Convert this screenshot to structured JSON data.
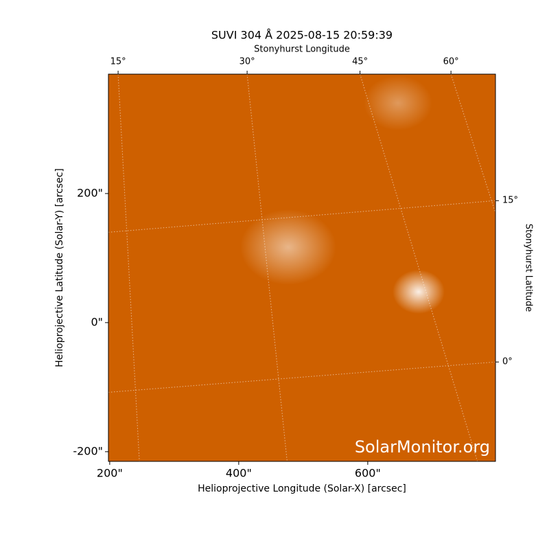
{
  "chart_data": {
    "type": "image",
    "title": "SUVI 304 Å 2025-08-15 20:59:39",
    "xlabel": "Helioprojective Longitude (Solar-X) [arcsec]",
    "ylabel": "Helioprojective Latitude (Solar-Y) [arcsec]",
    "xlim": [
      198,
      798
    ],
    "ylim": [
      -215,
      385
    ],
    "xticks": [
      {
        "value": 200,
        "label": "200\""
      },
      {
        "value": 400,
        "label": "400\""
      },
      {
        "value": 600,
        "label": "600\""
      }
    ],
    "yticks": [
      {
        "value": -200,
        "label": "-200\""
      },
      {
        "value": 0,
        "label": "0\""
      },
      {
        "value": 200,
        "label": "200\""
      }
    ],
    "lon_grid": {
      "title": "Stonyhurst Longitude",
      "lines": [
        {
          "label": "15°",
          "start": [
            213,
            385
          ],
          "end": [
            246,
            -215
          ]
        },
        {
          "label": "30°",
          "start": [
            413,
            385
          ],
          "end": [
            475,
            -215
          ]
        },
        {
          "label": "45°",
          "start": [
            588,
            385
          ],
          "end": [
            770,
            -215
          ]
        },
        {
          "label": "60°",
          "start": [
            729,
            385
          ],
          "end": [
            798,
            170
          ]
        }
      ]
    },
    "lat_grid": {
      "title": "Stonyhurst Latitude",
      "lines": [
        {
          "label": "15°",
          "start": [
            198,
            140
          ],
          "end": [
            798,
            189
          ]
        },
        {
          "label": "0°",
          "start": [
            198,
            -108
          ],
          "end": [
            798,
            -61
          ]
        }
      ]
    },
    "watermark": "SolarMonitor.org"
  }
}
